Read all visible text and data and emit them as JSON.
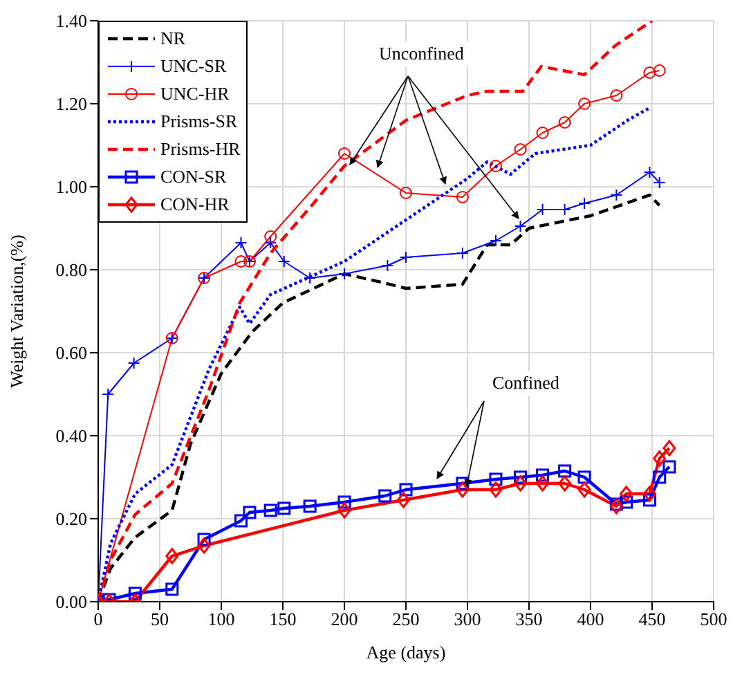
{
  "chart_data": {
    "type": "line",
    "xlabel": "Age (days)",
    "ylabel": "Weight Variation,(%)",
    "xlim": [
      0,
      500
    ],
    "xticks": [
      0,
      50,
      100,
      150,
      200,
      250,
      300,
      350,
      400,
      450,
      500
    ],
    "ylim": [
      0,
      1.4
    ],
    "yticks": [
      {
        "value": 0,
        "label": "0.00"
      },
      {
        "value": 0.2,
        "label": "0.20"
      },
      {
        "value": 0.4,
        "label": "0.40"
      },
      {
        "value": 0.6,
        "label": "0.60"
      },
      {
        "value": 0.8,
        "label": "0.80"
      },
      {
        "value": 1,
        "label": "1.00"
      },
      {
        "value": 1.2,
        "label": "1.20"
      },
      {
        "value": 1.4,
        "label": "1.40"
      }
    ],
    "grid": true,
    "legend": "top left",
    "annotations": [
      {
        "text": "Unconfined",
        "x": 200,
        "y": 1.08
      },
      {
        "text": "Confined",
        "x": 296,
        "y": 0.285
      }
    ],
    "series": [
      {
        "name": "NR",
        "color": "#000000",
        "line_style": "dashed",
        "marker": "none",
        "x": [
          0,
          10,
          30,
          60,
          75,
          100,
          125,
          150,
          200,
          230,
          250,
          296,
          316,
          335,
          350,
          400,
          448,
          456
        ],
        "values": [
          0,
          0.08,
          0.155,
          0.22,
          0.38,
          0.55,
          0.65,
          0.72,
          0.79,
          0.77,
          0.755,
          0.765,
          0.86,
          0.86,
          0.9,
          0.93,
          0.98,
          0.955
        ]
      },
      {
        "name": "UNC-SR",
        "color": "#0000ff",
        "line_style": "solid",
        "marker": "cross",
        "x": [
          0,
          8,
          29,
          60,
          86,
          116,
          123,
          140,
          151,
          172,
          200,
          235,
          250,
          296,
          323,
          343,
          361,
          379,
          395,
          421,
          448,
          456
        ],
        "values": [
          0,
          0.5,
          0.575,
          0.635,
          0.78,
          0.865,
          0.82,
          0.865,
          0.82,
          0.78,
          0.79,
          0.81,
          0.83,
          0.84,
          0.87,
          0.905,
          0.945,
          0.945,
          0.96,
          0.98,
          1.035,
          1.01
        ]
      },
      {
        "name": "UNC-HR",
        "color": "#ff0000",
        "line_style": "solid",
        "marker": "circle",
        "x": [
          0,
          60,
          86,
          116,
          123,
          140,
          200,
          250,
          296,
          323,
          343,
          361,
          379,
          395,
          421,
          448,
          456
        ],
        "values": [
          0,
          0.635,
          0.78,
          0.82,
          0.82,
          0.88,
          1.08,
          0.985,
          0.975,
          1.05,
          1.09,
          1.13,
          1.155,
          1.2,
          1.22,
          1.275,
          1.28
        ]
      },
      {
        "name": "Prisms-SR",
        "color": "#0000ff",
        "line_style": "dotted",
        "marker": "none",
        "x": [
          0,
          10,
          30,
          60,
          90,
          115,
          123,
          140,
          200,
          250,
          300,
          316,
          335,
          355,
          400,
          430,
          448
        ],
        "values": [
          0,
          0.14,
          0.26,
          0.33,
          0.56,
          0.71,
          0.67,
          0.74,
          0.82,
          0.92,
          1.02,
          1.06,
          1.03,
          1.08,
          1.1,
          1.16,
          1.19
        ]
      },
      {
        "name": "Prisms-HR",
        "color": "#ff0000",
        "line_style": "dashed",
        "marker": "none",
        "x": [
          0,
          10,
          30,
          60,
          90,
          115,
          140,
          175,
          200,
          250,
          300,
          316,
          345,
          360,
          395,
          420,
          450
        ],
        "values": [
          0,
          0.1,
          0.21,
          0.285,
          0.51,
          0.72,
          0.84,
          0.96,
          1.05,
          1.16,
          1.22,
          1.23,
          1.23,
          1.29,
          1.27,
          1.34,
          1.4
        ]
      },
      {
        "name": "CON-SR",
        "color": "#0000ff",
        "line_style": "solid",
        "marker": "square",
        "x": [
          0,
          9,
          30,
          60,
          86,
          116,
          123,
          140,
          151,
          172,
          200,
          233,
          250,
          296,
          323,
          343,
          361,
          379,
          395,
          421,
          429,
          448,
          456,
          464
        ],
        "values": [
          0,
          0.005,
          0.02,
          0.03,
          0.15,
          0.195,
          0.215,
          0.22,
          0.225,
          0.23,
          0.24,
          0.255,
          0.27,
          0.285,
          0.295,
          0.3,
          0.305,
          0.315,
          0.3,
          0.235,
          0.24,
          0.245,
          0.3,
          0.325
        ]
      },
      {
        "name": "CON-HR",
        "color": "#ff0000",
        "line_style": "solid",
        "marker": "diamond",
        "x": [
          0,
          9,
          30,
          60,
          86,
          200,
          248,
          296,
          323,
          343,
          361,
          379,
          395,
          421,
          429,
          448,
          456,
          464
        ],
        "values": [
          0,
          0,
          0,
          0.11,
          0.135,
          0.22,
          0.245,
          0.27,
          0.27,
          0.285,
          0.285,
          0.285,
          0.27,
          0.23,
          0.26,
          0.26,
          0.345,
          0.37
        ]
      }
    ]
  }
}
